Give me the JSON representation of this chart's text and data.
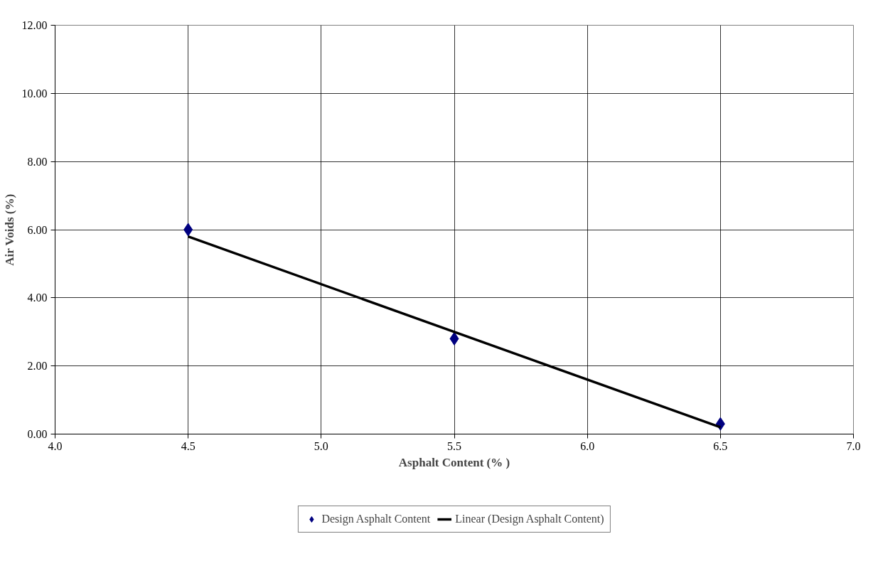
{
  "chart_data": {
    "type": "scatter",
    "xlabel": "Asphalt Content (% )",
    "ylabel": "Air Voids (%)",
    "xlim": [
      4.0,
      7.0
    ],
    "xticks": [
      {
        "value": 4.0,
        "label": "4.0"
      },
      {
        "value": 4.5,
        "label": "4.5"
      },
      {
        "value": 5.0,
        "label": "5.0"
      },
      {
        "value": 5.5,
        "label": "5.5"
      },
      {
        "value": 6.0,
        "label": "6.0"
      },
      {
        "value": 6.5,
        "label": "6.5"
      },
      {
        "value": 7.0,
        "label": "7.0"
      }
    ],
    "ylim": [
      0,
      12
    ],
    "yticks": [
      {
        "value": 0,
        "label": "0.00"
      },
      {
        "value": 2,
        "label": "2.00"
      },
      {
        "value": 4,
        "label": "4.00"
      },
      {
        "value": 6,
        "label": "6.00"
      },
      {
        "value": 8,
        "label": "8.00"
      },
      {
        "value": 10,
        "label": "10.00"
      },
      {
        "value": 12,
        "label": "12.00"
      }
    ],
    "grid": true,
    "legend": "bottom",
    "series": [
      {
        "name": "Design Asphalt Content",
        "marker": "diamond",
        "color": "#000080",
        "x": [
          4.5,
          5.5,
          6.5
        ],
        "values": [
          6.0,
          2.8,
          0.3
        ]
      },
      {
        "name": "Linear (Design Asphalt Content)",
        "type": "line",
        "line_style": "solid",
        "color": "#000000",
        "x": [
          4.5,
          6.5
        ],
        "values": [
          5.8,
          0.2
        ]
      }
    ]
  }
}
